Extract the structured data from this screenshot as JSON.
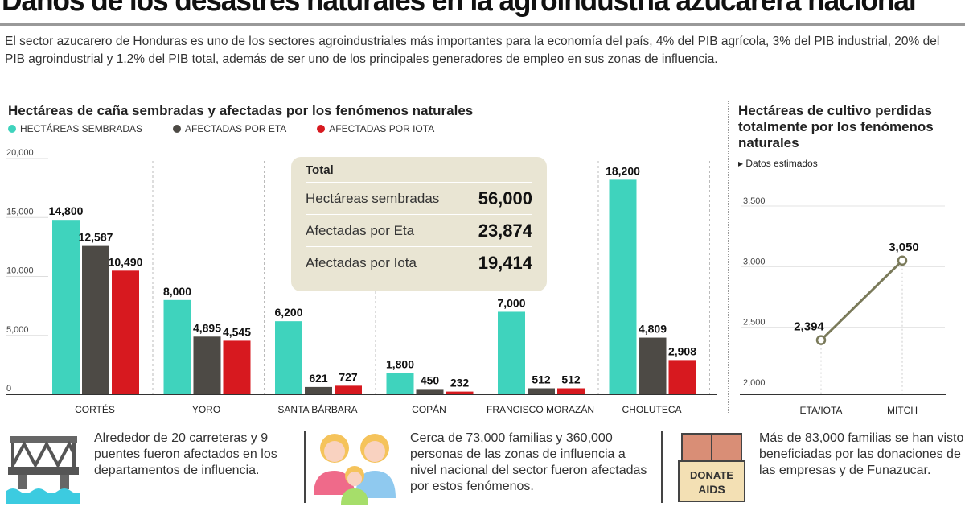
{
  "title": "Daños de los desastres naturales en la agroindustria azucarera nacional",
  "intro": "El sector azucarero de Honduras es uno de los sectores agroindustriales más importantes para la economía del país, 4% del PIB agrícola, 3% del PIB industrial, 20% del PIB agroindustrial y 1.2% del PIB total, además de ser uno de los principales generadores de empleo en sus zonas de influencia.",
  "total": {
    "heading": "Total",
    "rows": [
      {
        "label": "Hectáreas sembradas",
        "value": "56,000"
      },
      {
        "label": "Afectadas por Eta",
        "value": "23,874"
      },
      {
        "label": "Afectadas por Iota",
        "value": "19,414"
      }
    ]
  },
  "chart_data": [
    {
      "type": "bar",
      "title": "Hectáreas de caña sembradas y afectadas por los fenómenos naturales",
      "categories": [
        "CORTÉS",
        "YORO",
        "SANTA BÁRBARA",
        "COPÁN",
        "FRANCISCO MORAZÁN",
        "CHOLUTECA"
      ],
      "series": [
        {
          "name": "HECTÁREAS SEMBRADAS",
          "color": "#3fd3bd",
          "values": [
            14800,
            8000,
            6200,
            1800,
            7000,
            18200
          ]
        },
        {
          "name": "AFECTADAS POR ETA",
          "color": "#4d4a45",
          "values": [
            12587,
            4895,
            621,
            450,
            512,
            4809
          ]
        },
        {
          "name": "AFECTADAS POR IOTA",
          "color": "#d7191f",
          "values": [
            10490,
            4545,
            727,
            232,
            512,
            2908
          ]
        }
      ],
      "yticks": [
        "0",
        "5,000",
        "10,000",
        "15,000",
        "20,000"
      ],
      "ylim": [
        0,
        20000
      ],
      "labels": [
        [
          "14,800",
          "12,587",
          "10,490"
        ],
        [
          "8,000",
          "4,895",
          "4,545"
        ],
        [
          "6,200",
          "621",
          "727"
        ],
        [
          "1,800",
          "450",
          "232"
        ],
        [
          "7,000",
          "512",
          "512"
        ],
        [
          "18,200",
          "4,809",
          "2,908"
        ]
      ]
    },
    {
      "type": "line",
      "title": "Hectáreas de cultivo perdidas totalmente por los fenómenos naturales",
      "note": "Datos estimados",
      "categories": [
        "ETA/IOTA",
        "MITCH"
      ],
      "values": [
        2394,
        3050
      ],
      "labels": [
        "2,394",
        "3,050"
      ],
      "yticks": [
        "2,000",
        "2,500",
        "3,000",
        "3,500"
      ],
      "ylim": [
        2000,
        3500
      ],
      "color": "#7a7a5a"
    }
  ],
  "facts": [
    {
      "icon": "bridge-icon",
      "text": "Alrededor de 20 carreteras y 9 puentes fueron afectados en los departamentos de influencia."
    },
    {
      "icon": "family-icon",
      "text": "Cerca de 73,000 familias y 360,000 personas de las zonas de influencia a nivel nacional del sector fueron afectadas por estos fenómenos."
    },
    {
      "icon": "donation-box-icon",
      "text": "Más de 83,000 familias se han visto beneficiadas por las donaciones de las empresas y de Funazucar.",
      "box_text": [
        "DONATE",
        "AIDS"
      ]
    }
  ]
}
